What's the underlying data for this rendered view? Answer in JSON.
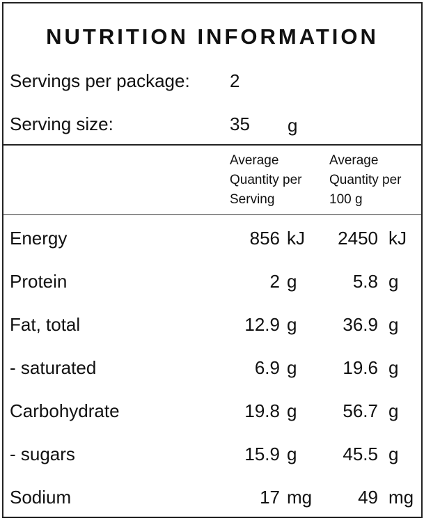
{
  "title": "NUTRITION INFORMATION",
  "servings": {
    "label": "Servings per package:",
    "value": "2"
  },
  "serving_size": {
    "label": "Serving size:",
    "value": "35",
    "unit": "g"
  },
  "columns": [
    {
      "lines": [
        "Average",
        "Quantity per",
        "Serving"
      ]
    },
    {
      "lines": [
        "Average",
        "Quantity per",
        "100 g"
      ]
    }
  ],
  "rows": [
    {
      "name": "Energy",
      "per_serving": "856",
      "per_serving_unit": "kJ",
      "per_100g": "2450",
      "per_100g_unit": "kJ"
    },
    {
      "name": "Protein",
      "per_serving": "2",
      "per_serving_unit": "g",
      "per_100g": "5.8",
      "per_100g_unit": "g"
    },
    {
      "name": "Fat, total",
      "per_serving": "12.9",
      "per_serving_unit": "g",
      "per_100g": "36.9",
      "per_100g_unit": "g"
    },
    {
      "name": "- saturated",
      "per_serving": "6.9",
      "per_serving_unit": "g",
      "per_100g": "19.6",
      "per_100g_unit": "g"
    },
    {
      "name": "Carbohydrate",
      "per_serving": "19.8",
      "per_serving_unit": "g",
      "per_100g": "56.7",
      "per_100g_unit": "g"
    },
    {
      "name": "- sugars",
      "per_serving": "15.9",
      "per_serving_unit": "g",
      "per_100g": "45.5",
      "per_100g_unit": "g"
    },
    {
      "name": "Sodium",
      "per_serving": "17",
      "per_serving_unit": "mg",
      "per_100g": "49",
      "per_100g_unit": "mg"
    }
  ]
}
